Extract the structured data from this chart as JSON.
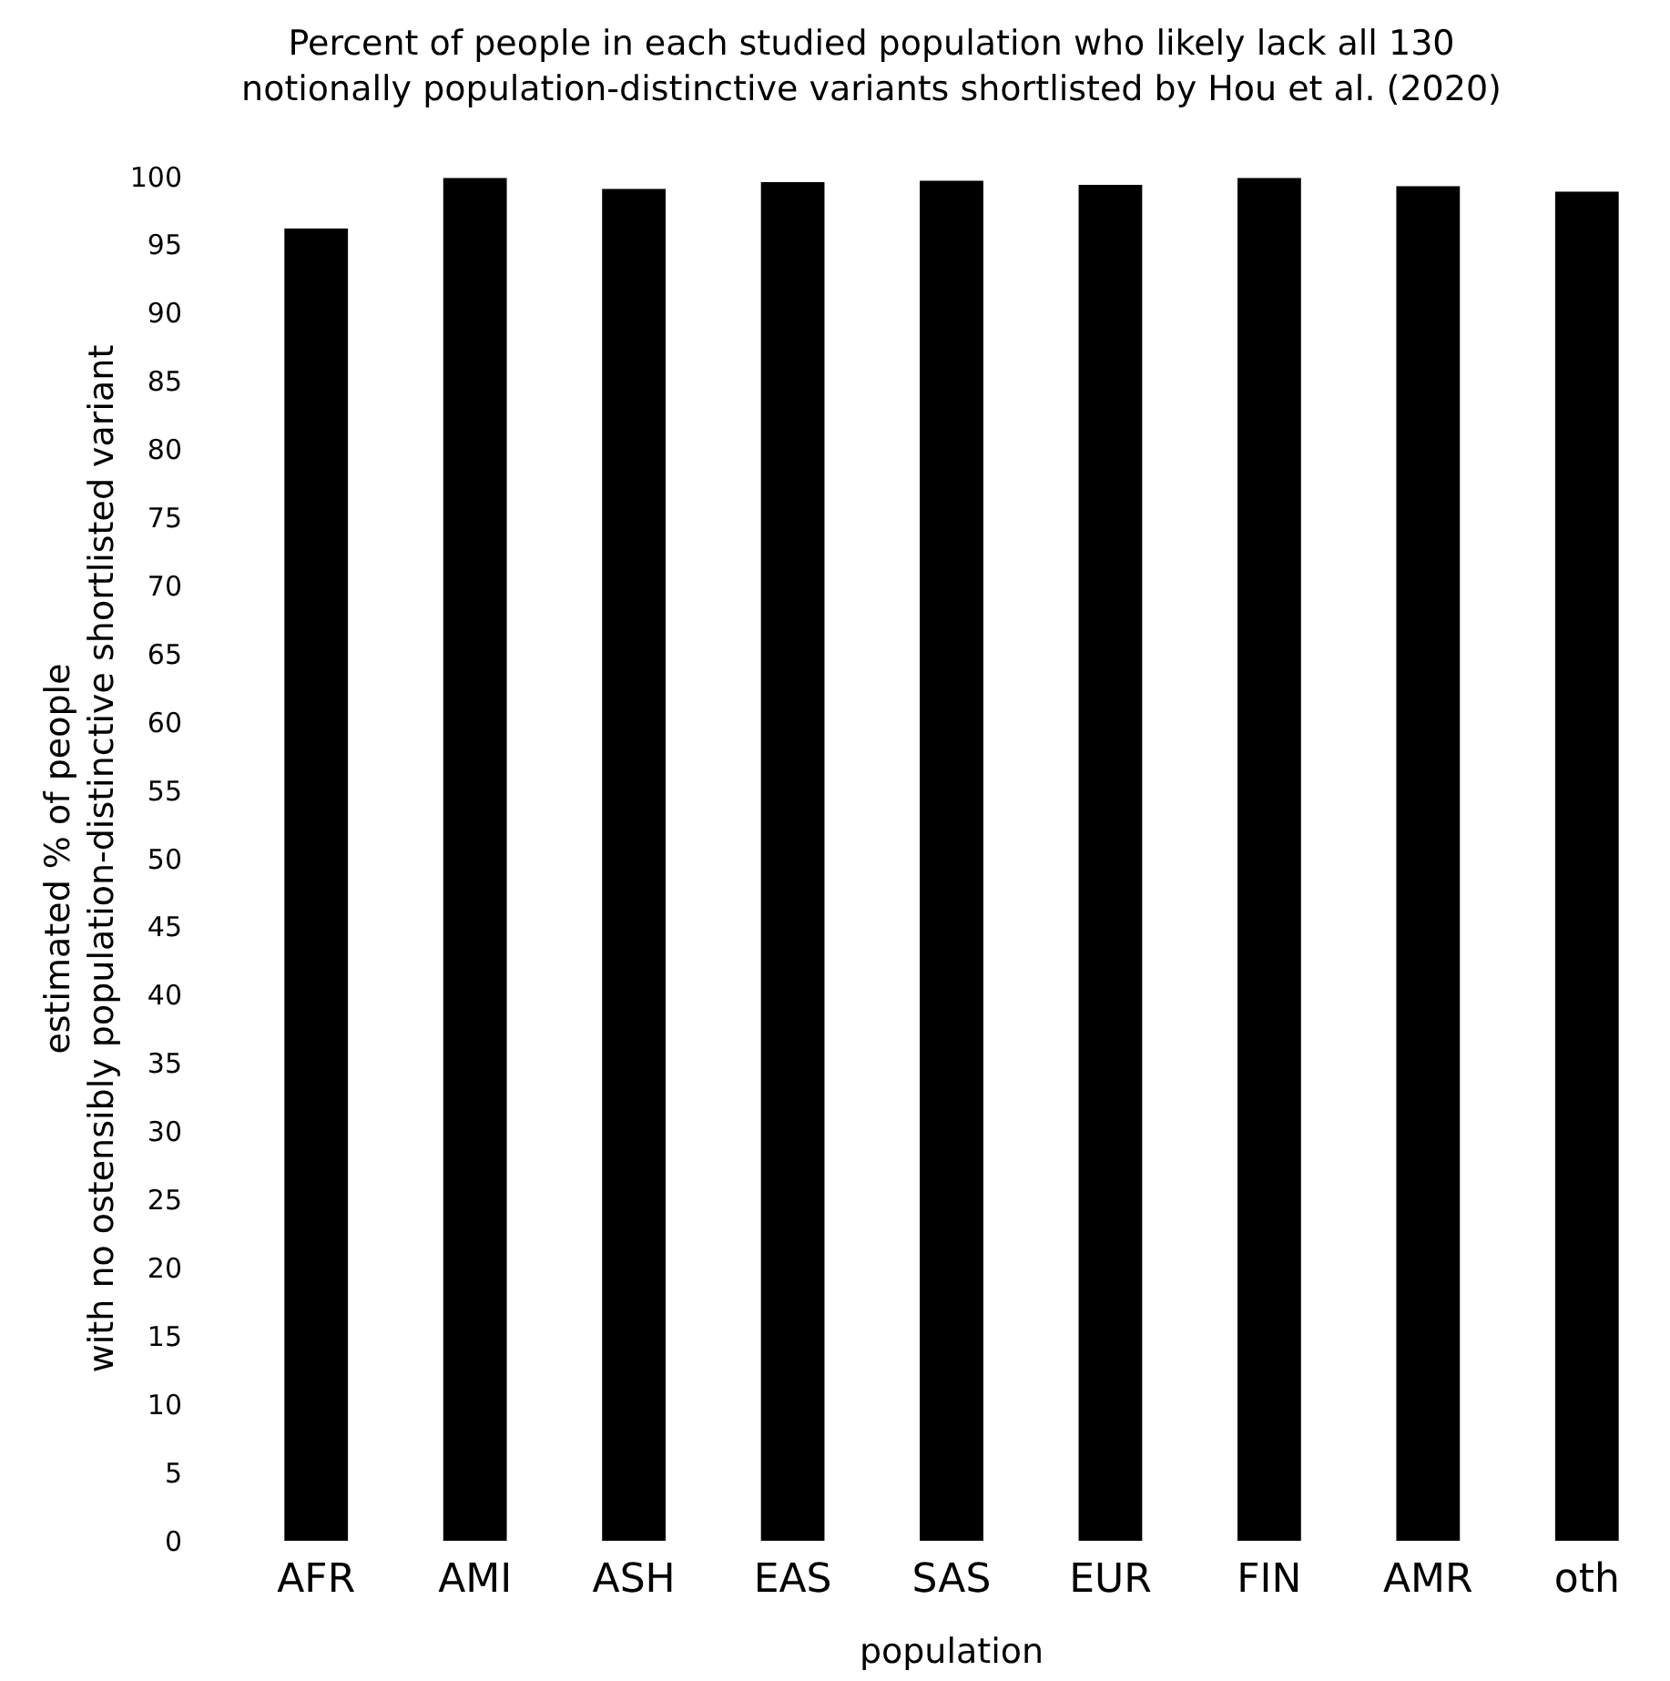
{
  "chart_data": {
    "type": "bar",
    "title": "Percent of people in each studied population who likely lack all 130\nnotionally population-distinctive variants shortlisted by Hou et al. (2020)",
    "xlabel": "population",
    "ylabel": "estimated % of people\nwith no ostensibly population-distinctive shortlisted variant",
    "categories": [
      "AFR",
      "AMI",
      "ASH",
      "EAS",
      "SAS",
      "EUR",
      "FIN",
      "AMR",
      "oth"
    ],
    "values": [
      96.2,
      99.9,
      99.1,
      99.6,
      99.7,
      99.4,
      99.9,
      99.3,
      98.9
    ],
    "color": "#000000",
    "ylim": [
      0,
      100
    ],
    "yticks": [
      0,
      5,
      10,
      15,
      20,
      25,
      30,
      35,
      40,
      45,
      50,
      55,
      60,
      65,
      70,
      75,
      80,
      85,
      90,
      95,
      100
    ],
    "grid": false
  }
}
